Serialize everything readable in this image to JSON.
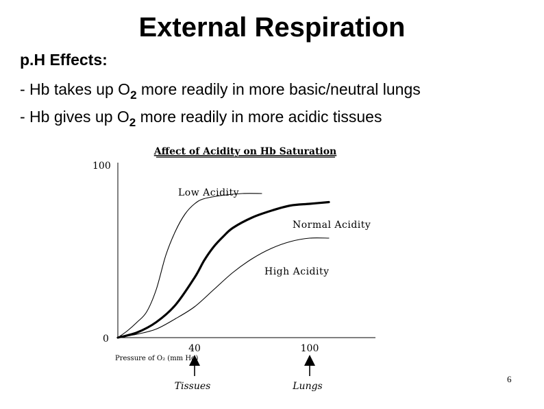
{
  "slide": {
    "title": "External Respiration",
    "heading": "p.H Effects:",
    "bullets": [
      {
        "prefix": "- Hb takes up O",
        "sub": "2",
        "suffix": " more readily in more basic/neutral lungs"
      },
      {
        "prefix": "- Hb gives up O",
        "sub": "2",
        "suffix": " more readily in more acidic tissues"
      }
    ],
    "page_number": "6"
  },
  "chart_data": {
    "type": "line",
    "title": "Affect of Acidity on Hb Saturation",
    "xlabel": "Pressure of O₂ (mm Hg)",
    "ylabel": "",
    "ylim": [
      0,
      100
    ],
    "xlim": [
      0,
      130
    ],
    "y_ticks": [
      "100",
      "0"
    ],
    "x_ticks": [
      {
        "value": 40,
        "label": "40",
        "annotation": "Tissues"
      },
      {
        "value": 100,
        "label": "100",
        "annotation": "Lungs"
      }
    ],
    "grid": false,
    "legend": "none",
    "series": [
      {
        "name": "Low Acidity",
        "stroke": "thin",
        "x": [
          0,
          5,
          10,
          15,
          20,
          25,
          30,
          35,
          40,
          45,
          55,
          65,
          75
        ],
        "y": [
          0,
          4,
          9,
          15,
          28,
          48,
          62,
          72,
          78,
          81,
          83,
          84,
          84
        ]
      },
      {
        "name": "Normal Acidity",
        "stroke": "thick",
        "x": [
          0,
          10,
          20,
          30,
          40,
          45,
          50,
          55,
          60,
          70,
          80,
          90,
          100,
          110
        ],
        "y": [
          0,
          3,
          9,
          19,
          35,
          45,
          53,
          59,
          64,
          70,
          74,
          77,
          78,
          79
        ]
      },
      {
        "name": "High Acidity",
        "stroke": "thin",
        "x": [
          0,
          10,
          20,
          30,
          40,
          50,
          60,
          70,
          80,
          90,
          100,
          110
        ],
        "y": [
          0,
          2,
          5,
          11,
          18,
          28,
          38,
          46,
          52,
          56,
          58,
          58
        ]
      }
    ],
    "series_labels": [
      "Low Acidity",
      "Normal Acidity",
      "High Acidity"
    ]
  }
}
